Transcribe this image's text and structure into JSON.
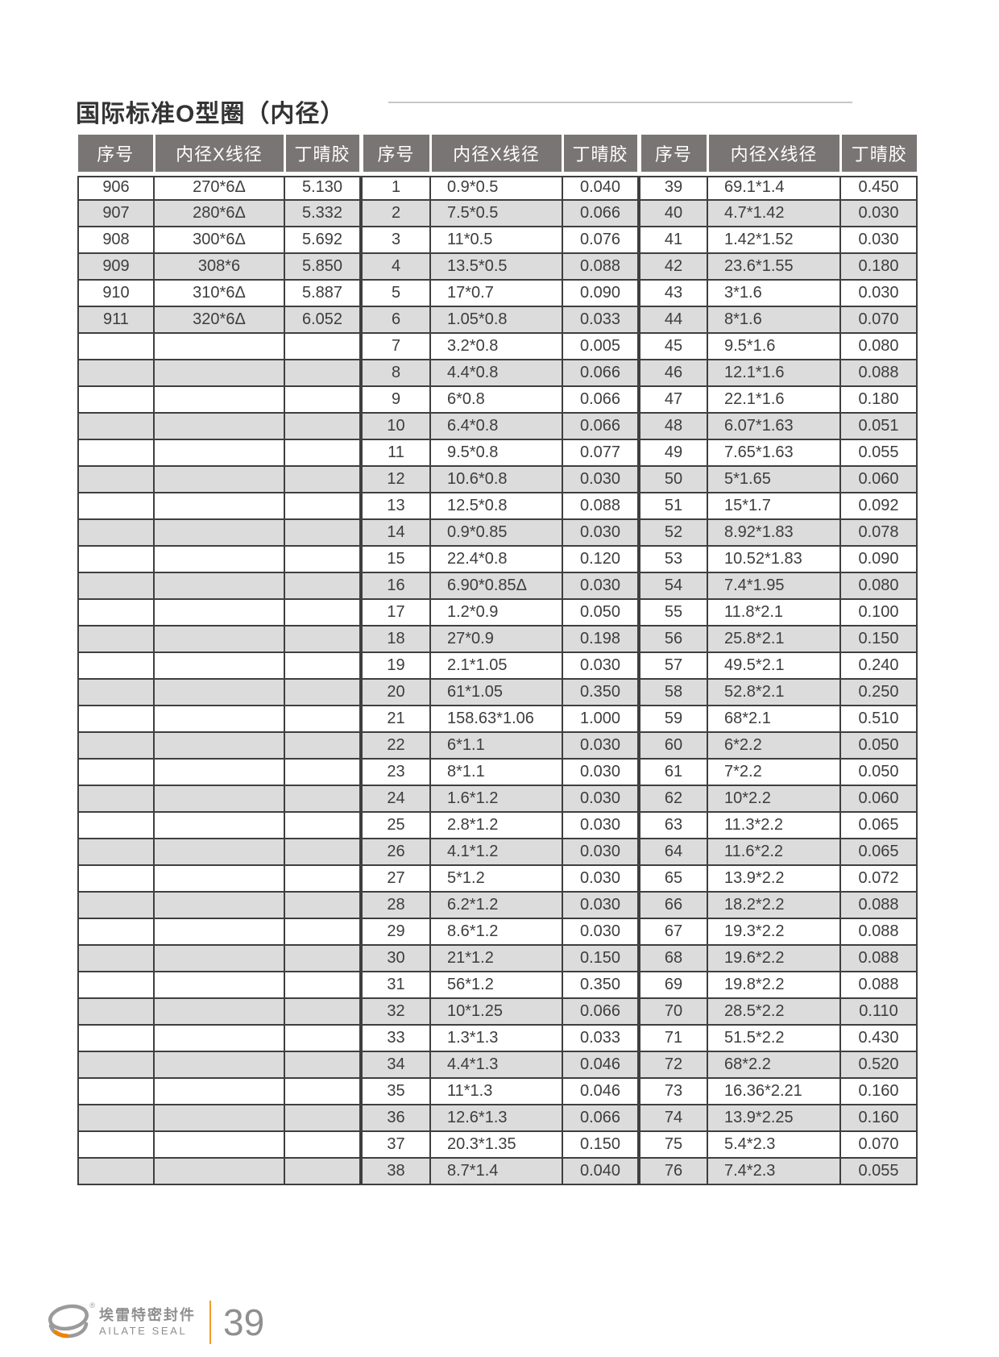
{
  "page": {
    "title": "国际标准O型圈（内径）"
  },
  "table": {
    "headers": [
      "序号",
      "内径X线径",
      "丁晴胶",
      "序号",
      "内径X线径",
      "丁晴胶",
      "序号",
      "内径X线径",
      "丁晴胶"
    ],
    "rows": [
      [
        "906",
        "270*6Δ",
        "5.130",
        "1",
        "0.9*0.5",
        "0.040",
        "39",
        "69.1*1.4",
        "0.450"
      ],
      [
        "907",
        "280*6Δ",
        "5.332",
        "2",
        "7.5*0.5",
        "0.066",
        "40",
        "4.7*1.42",
        "0.030"
      ],
      [
        "908",
        "300*6Δ",
        "5.692",
        "3",
        "11*0.5",
        "0.076",
        "41",
        "1.42*1.52",
        "0.030"
      ],
      [
        "909",
        "308*6",
        "5.850",
        "4",
        "13.5*0.5",
        "0.088",
        "42",
        "23.6*1.55",
        "0.180"
      ],
      [
        "910",
        "310*6Δ",
        "5.887",
        "5",
        "17*0.7",
        "0.090",
        "43",
        "3*1.6",
        "0.030"
      ],
      [
        "911",
        "320*6Δ",
        "6.052",
        "6",
        "1.05*0.8",
        "0.033",
        "44",
        "8*1.6",
        "0.070"
      ],
      [
        "",
        "",
        "",
        "7",
        "3.2*0.8",
        "0.005",
        "45",
        "9.5*1.6",
        "0.080"
      ],
      [
        "",
        "",
        "",
        "8",
        "4.4*0.8",
        "0.066",
        "46",
        "12.1*1.6",
        "0.088"
      ],
      [
        "",
        "",
        "",
        "9",
        "6*0.8",
        "0.066",
        "47",
        "22.1*1.6",
        "0.180"
      ],
      [
        "",
        "",
        "",
        "10",
        "6.4*0.8",
        "0.066",
        "48",
        "6.07*1.63",
        "0.051"
      ],
      [
        "",
        "",
        "",
        "11",
        "9.5*0.8",
        "0.077",
        "49",
        "7.65*1.63",
        "0.055"
      ],
      [
        "",
        "",
        "",
        "12",
        "10.6*0.8",
        "0.030",
        "50",
        "5*1.65",
        "0.060"
      ],
      [
        "",
        "",
        "",
        "13",
        "12.5*0.8",
        "0.088",
        "51",
        "15*1.7",
        "0.092"
      ],
      [
        "",
        "",
        "",
        "14",
        "0.9*0.85",
        "0.030",
        "52",
        "8.92*1.83",
        "0.078"
      ],
      [
        "",
        "",
        "",
        "15",
        "22.4*0.8",
        "0.120",
        "53",
        "10.52*1.83",
        "0.090"
      ],
      [
        "",
        "",
        "",
        "16",
        "6.90*0.85Δ",
        "0.030",
        "54",
        "7.4*1.95",
        "0.080"
      ],
      [
        "",
        "",
        "",
        "17",
        "1.2*0.9",
        "0.050",
        "55",
        "11.8*2.1",
        "0.100"
      ],
      [
        "",
        "",
        "",
        "18",
        "27*0.9",
        "0.198",
        "56",
        "25.8*2.1",
        "0.150"
      ],
      [
        "",
        "",
        "",
        "19",
        "2.1*1.05",
        "0.030",
        "57",
        "49.5*2.1",
        "0.240"
      ],
      [
        "",
        "",
        "",
        "20",
        "61*1.05",
        "0.350",
        "58",
        "52.8*2.1",
        "0.250"
      ],
      [
        "",
        "",
        "",
        "21",
        "158.63*1.06",
        "1.000",
        "59",
        "68*2.1",
        "0.510"
      ],
      [
        "",
        "",
        "",
        "22",
        "6*1.1",
        "0.030",
        "60",
        "6*2.2",
        "0.050"
      ],
      [
        "",
        "",
        "",
        "23",
        "8*1.1",
        "0.030",
        "61",
        "7*2.2",
        "0.050"
      ],
      [
        "",
        "",
        "",
        "24",
        "1.6*1.2",
        "0.030",
        "62",
        "10*2.2",
        "0.060"
      ],
      [
        "",
        "",
        "",
        "25",
        "2.8*1.2",
        "0.030",
        "63",
        "11.3*2.2",
        "0.065"
      ],
      [
        "",
        "",
        "",
        "26",
        "4.1*1.2",
        "0.030",
        "64",
        "11.6*2.2",
        "0.065"
      ],
      [
        "",
        "",
        "",
        "27",
        "5*1.2",
        "0.030",
        "65",
        "13.9*2.2",
        "0.072"
      ],
      [
        "",
        "",
        "",
        "28",
        "6.2*1.2",
        "0.030",
        "66",
        "18.2*2.2",
        "0.088"
      ],
      [
        "",
        "",
        "",
        "29",
        "8.6*1.2",
        "0.030",
        "67",
        "19.3*2.2",
        "0.088"
      ],
      [
        "",
        "",
        "",
        "30",
        "21*1.2",
        "0.150",
        "68",
        "19.6*2.2",
        "0.088"
      ],
      [
        "",
        "",
        "",
        "31",
        "56*1.2",
        "0.350",
        "69",
        "19.8*2.2",
        "0.088"
      ],
      [
        "",
        "",
        "",
        "32",
        "10*1.25",
        "0.066",
        "70",
        "28.5*2.2",
        "0.110"
      ],
      [
        "",
        "",
        "",
        "33",
        "1.3*1.3",
        "0.033",
        "71",
        "51.5*2.2",
        "0.430"
      ],
      [
        "",
        "",
        "",
        "34",
        "4.4*1.3",
        "0.046",
        "72",
        "68*2.2",
        "0.520"
      ],
      [
        "",
        "",
        "",
        "35",
        "11*1.3",
        "0.046",
        "73",
        "16.36*2.21",
        "0.160"
      ],
      [
        "",
        "",
        "",
        "36",
        "12.6*1.3",
        "0.066",
        "74",
        "13.9*2.25",
        "0.160"
      ],
      [
        "",
        "",
        "",
        "37",
        "20.3*1.35",
        "0.150",
        "75",
        "5.4*2.3",
        "0.070"
      ],
      [
        "",
        "",
        "",
        "38",
        "8.7*1.4",
        "0.040",
        "76",
        "7.4*2.3",
        "0.055"
      ]
    ]
  },
  "footer": {
    "brand_cn": "埃雷特密封件",
    "brand_en": "AILATE SEAL",
    "registered_mark": "®",
    "page_number": "39"
  },
  "colors": {
    "header_bg": "#7a7575",
    "row_stripe": "#dcdcdc",
    "table_border": "#3f3f3f",
    "accent_orange": "#f39a2b",
    "footer_gray": "#8f8f8f"
  }
}
